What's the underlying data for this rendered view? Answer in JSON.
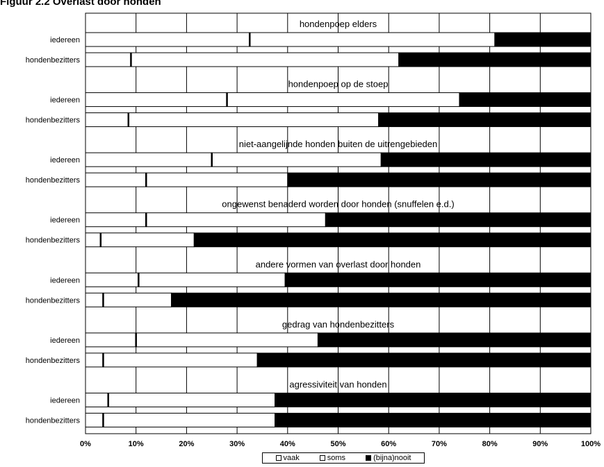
{
  "title": "Figuur 2.2 Overlast door honden",
  "colors": {
    "vaak": "#ffffff",
    "soms": "#ffffff",
    "nooit": "#000000",
    "grid": "#000000",
    "border": "#000000"
  },
  "legend": {
    "vaak": "vaak",
    "soms": "soms",
    "nooit": "(bijna)nooit"
  },
  "chart_data": {
    "type": "bar",
    "orientation": "horizontal",
    "stacked": true,
    "percent": true,
    "xlim": [
      0,
      100
    ],
    "xticks": [
      "0%",
      "10%",
      "20%",
      "30%",
      "40%",
      "50%",
      "60%",
      "70%",
      "80%",
      "90%",
      "100%"
    ],
    "grid": true,
    "legend_position": "bottom",
    "series_names": [
      "vaak",
      "soms",
      "(bijna)nooit"
    ],
    "groups": [
      {
        "title": "hondenpoep elders",
        "rows": [
          {
            "label": "iedereen",
            "vaak": 32.5,
            "soms": 48.5,
            "nooit": 19.0
          },
          {
            "label": "hondenbezitters",
            "vaak": 9.0,
            "soms": 53.0,
            "nooit": 38.0
          }
        ]
      },
      {
        "title": "hondenpoep op de stoep",
        "rows": [
          {
            "label": "iedereen",
            "vaak": 28.0,
            "soms": 46.0,
            "nooit": 26.0
          },
          {
            "label": "hondenbezitters",
            "vaak": 8.5,
            "soms": 49.5,
            "nooit": 42.0
          }
        ]
      },
      {
        "title": "niet-aangelijnde honden buiten de uitrengebieden",
        "rows": [
          {
            "label": "iedereen",
            "vaak": 25.0,
            "soms": 33.5,
            "nooit": 41.5
          },
          {
            "label": "hondenbezitters",
            "vaak": 12.0,
            "soms": 28.0,
            "nooit": 60.0
          }
        ]
      },
      {
        "title": "ongewenst benaderd worden door honden (snuffelen e.d.)",
        "rows": [
          {
            "label": "iedereen",
            "vaak": 12.0,
            "soms": 35.5,
            "nooit": 52.5
          },
          {
            "label": "hondenbezitters",
            "vaak": 3.0,
            "soms": 18.5,
            "nooit": 78.5
          }
        ]
      },
      {
        "title": "andere vormen van overlast door honden",
        "rows": [
          {
            "label": "iedereen",
            "vaak": 10.5,
            "soms": 29.0,
            "nooit": 60.5
          },
          {
            "label": "hondenbezitters",
            "vaak": 3.5,
            "soms": 13.5,
            "nooit": 83.0
          }
        ]
      },
      {
        "title": "gedrag van hondenbezitters",
        "rows": [
          {
            "label": "iedereen",
            "vaak": 10.0,
            "soms": 36.0,
            "nooit": 54.0
          },
          {
            "label": "hondenbezitters",
            "vaak": 3.5,
            "soms": 30.5,
            "nooit": 66.0
          }
        ]
      },
      {
        "title": "agressiviteit van honden",
        "rows": [
          {
            "label": "iedereen",
            "vaak": 4.5,
            "soms": 33.0,
            "nooit": 62.5
          },
          {
            "label": "hondenbezitters",
            "vaak": 3.5,
            "soms": 34.0,
            "nooit": 62.5
          }
        ]
      }
    ]
  }
}
